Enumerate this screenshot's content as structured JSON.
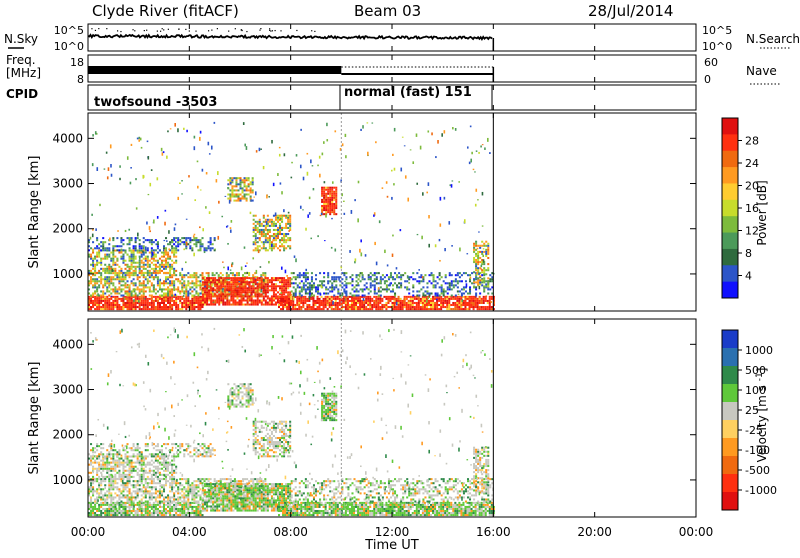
{
  "header": {
    "station": "Clyde River (fitACF)",
    "beam": "Beam 03",
    "date": "28/Jul/2014"
  },
  "left_labels": {
    "nsky": "N.Sky",
    "freq": "Freq.",
    "mhz": "[MHz]",
    "cpid": "CPID"
  },
  "right_labels": {
    "nsearch": "N.Search",
    "nave": "Nave"
  },
  "noise_panel": {
    "left_ticks": [
      "10^5",
      "10^0"
    ],
    "right_ticks": [
      "10^5",
      "10^0"
    ]
  },
  "freq_panel": {
    "left_ticks": [
      "18",
      "8"
    ],
    "right_ticks": [
      "60",
      "0"
    ]
  },
  "cpid": {
    "mode1": "twofsound -3503",
    "mode2": "normal (fast) 151"
  },
  "x_axis": {
    "title": "Time UT",
    "ticks": [
      "00:00",
      "04:00",
      "08:00",
      "12:00",
      "16:00",
      "20:00",
      "00:00"
    ]
  },
  "power_panel": {
    "ylabel": "Slant Range [km]",
    "yticks": [
      "1000",
      "2000",
      "3000",
      "4000"
    ],
    "colorbar_title": "Power [dB]",
    "colorbar_ticks": [
      "4",
      "8",
      "12",
      "16",
      "20",
      "24",
      "28"
    ],
    "colorbar_colors": [
      "#1010ff",
      "#2c55c8",
      "#2f6b3e",
      "#4c9a5a",
      "#7dbb3c",
      "#c7dc2c",
      "#ffcc30",
      "#ff9a20",
      "#f06a10",
      "#ff3010",
      "#e01010"
    ]
  },
  "velocity_panel": {
    "ylabel": "Slant Range [km]",
    "yticks": [
      "1000",
      "2000",
      "3000",
      "4000"
    ],
    "colorbar_title": "Velocity [m s^-1]",
    "colorbar_ticks": [
      "1000",
      "500",
      "100",
      "25",
      "-25",
      "-100",
      "-500",
      "-1000"
    ],
    "colorbar_colors": [
      "#1a3cc8",
      "#2a70b0",
      "#2f8a4a",
      "#5fc83a",
      "#c8c8c0",
      "#ffd060",
      "#ff9a20",
      "#f06a10",
      "#ff3010",
      "#e01010"
    ]
  },
  "chart_data": {
    "type": "heatmap",
    "title": "Clyde River (fitACF)",
    "subtitle": "Beam 03",
    "xlabel": "Time UT",
    "ylabel": "Slant Range [km]",
    "xlim": [
      0,
      24
    ],
    "ylim": [
      180,
      4560
    ],
    "data_end_hour": 16,
    "mode_change_hour": 10,
    "power_bands": [
      {
        "t0": 0.0,
        "t1": 4.5,
        "r0": 200,
        "r1": 500,
        "level": "high"
      },
      {
        "t0": 0.0,
        "t1": 7.0,
        "r0": 500,
        "r1": 1000,
        "level": "mid"
      },
      {
        "t0": 0.0,
        "t1": 3.5,
        "r0": 1000,
        "r1": 1500,
        "level": "mid"
      },
      {
        "t0": 0.0,
        "t1": 5.0,
        "r0": 1500,
        "r1": 1800,
        "level": "low"
      },
      {
        "t0": 4.5,
        "t1": 8.0,
        "r0": 300,
        "r1": 900,
        "level": "high"
      },
      {
        "t0": 7.5,
        "t1": 16.0,
        "r0": 200,
        "r1": 500,
        "level": "high"
      },
      {
        "t0": 8.0,
        "t1": 16.0,
        "r0": 500,
        "r1": 1000,
        "level": "low"
      },
      {
        "t0": 6.5,
        "t1": 8.0,
        "r0": 1500,
        "r1": 2300,
        "level": "mid"
      },
      {
        "t0": 5.5,
        "t1": 6.5,
        "r0": 2600,
        "r1": 3100,
        "level": "mid"
      },
      {
        "t0": 9.2,
        "t1": 9.8,
        "r0": 2300,
        "r1": 2900,
        "level": "high"
      },
      {
        "t0": 15.2,
        "t1": 15.8,
        "r0": 700,
        "r1": 1700,
        "level": "mid"
      }
    ]
  }
}
